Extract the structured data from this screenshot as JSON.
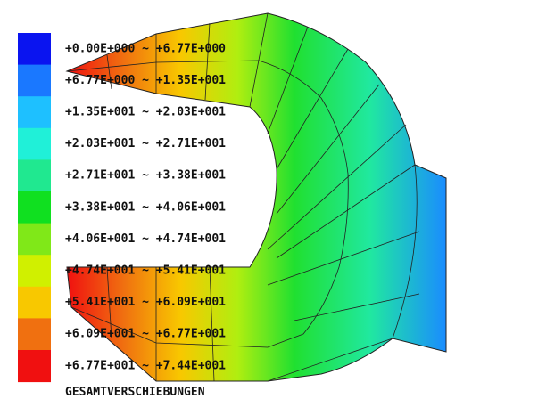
{
  "legend": {
    "entries": [
      {
        "label": "+0.00E+000 ~ +6.77E+000",
        "color": "#0a14f0"
      },
      {
        "label": "+6.77E+000 ~ +1.35E+001",
        "color": "#1a78ff"
      },
      {
        "label": "+1.35E+001 ~ +2.03E+001",
        "color": "#1ec0ff"
      },
      {
        "label": "+2.03E+001 ~ +2.71E+001",
        "color": "#20f0d8"
      },
      {
        "label": "+2.71E+001 ~ +3.38E+001",
        "color": "#20e890"
      },
      {
        "label": "+3.38E+001 ~ +4.06E+001",
        "color": "#10e020"
      },
      {
        "label": "+4.06E+001 ~ +4.74E+001",
        "color": "#80e818"
      },
      {
        "label": "+4.74E+001 ~ +5.41E+001",
        "color": "#d0f000"
      },
      {
        "label": "+5.41E+001 ~ +6.09E+001",
        "color": "#f8c800"
      },
      {
        "label": "+6.09E+001 ~ +6.77E+001",
        "color": "#f07010"
      },
      {
        "label": "+6.77E+001 ~ +7.44E+001",
        "color": "#f01010"
      }
    ],
    "title": "GESAMTVERSCHIEBUNGEN"
  }
}
